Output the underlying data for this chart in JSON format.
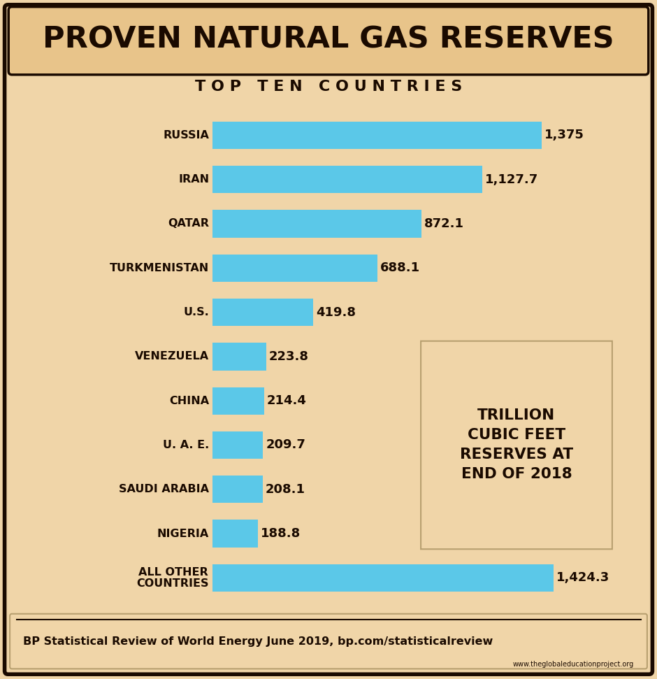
{
  "title": "PROVEN NATURAL GAS RESERVES",
  "subtitle": "T O P   T E N   C O U N T R I E S",
  "categories": [
    "RUSSIA",
    "IRAN",
    "QATAR",
    "TURKMENISTAN",
    "U.S.",
    "VENEZUELA",
    "CHINA",
    "U. A. E.",
    "SAUDI ARABIA",
    "NIGERIA",
    "ALL OTHER\nCOUNTRIES"
  ],
  "values": [
    1375,
    1127.7,
    872.1,
    688.1,
    419.8,
    223.8,
    214.4,
    209.7,
    208.1,
    188.8,
    1424.3
  ],
  "value_labels": [
    "1,375",
    "1,127.7",
    "872.1",
    "688.1",
    "419.8",
    "223.8",
    "214.4",
    "209.7",
    "208.1",
    "188.8",
    "1,424.3"
  ],
  "bar_color": "#5bc8e8",
  "background_color": "#f0d5a8",
  "title_bg_color": "#e8c48a",
  "border_color": "#1a0a00",
  "text_color": "#1a0a00",
  "footer_text": "BP Statistical Review of World Energy June 2019, bp.com/statisticalreview",
  "watermark": "www.theglobaleducationproject.org",
  "legend_line1": "TRILLION",
  "legend_line2": "CUBIC FEET",
  "legend_line3": "RESERVES AT",
  "legend_line4": "END OF 2018",
  "max_val": 1500
}
